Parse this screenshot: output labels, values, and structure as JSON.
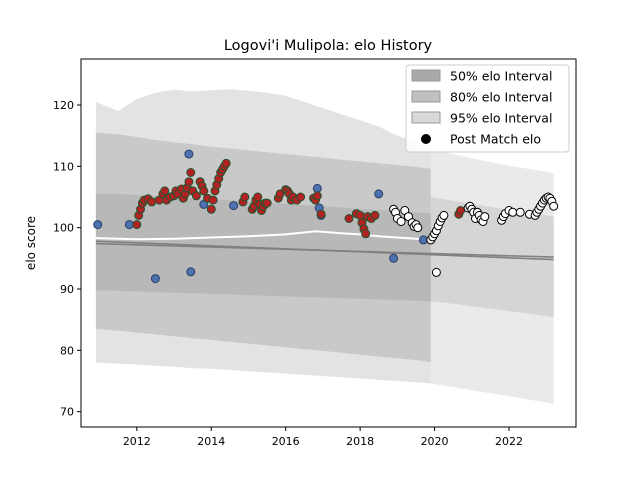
{
  "chart_data": {
    "type": "scatter",
    "title": "Logovi'i Mulipola: elo History",
    "xlabel": "",
    "ylabel": "elo score",
    "xlim": [
      2010.5,
      2023.8
    ],
    "ylim": [
      67.5,
      127.5
    ],
    "x_ticks": [
      2012,
      2014,
      2016,
      2018,
      2020,
      2022
    ],
    "y_ticks": [
      70,
      80,
      90,
      100,
      110,
      120
    ],
    "grid": false,
    "legend_position": "top-right",
    "legend": [
      {
        "label": "50% elo Interval",
        "kind": "band",
        "color": "#a9a9a9"
      },
      {
        "label": "80% elo Interval",
        "kind": "band",
        "color": "#c0c0c0"
      },
      {
        "label": "95% elo Interval",
        "kind": "band",
        "color": "#d9d9d9"
      },
      {
        "label": "Post Match elo",
        "kind": "marker",
        "color": "#000000"
      }
    ],
    "colors": {
      "band_50": "#a9a9a9",
      "band_80": "#bdbdbd",
      "band_95": "#d9d9d9",
      "blue_point": "#4c72b0",
      "red_point": "#b22222",
      "red_edge": "#1e5631",
      "open_point": "#ffffff",
      "mean_line": "#ffffff",
      "trend_line": "#808080"
    },
    "intervals": {
      "x": [
        2010.9,
        2011.5,
        2012.0,
        2012.5,
        2013.0,
        2013.5,
        2014.0,
        2014.5,
        2015.0,
        2015.5,
        2016.0,
        2016.5,
        2017.0,
        2017.5,
        2018.0,
        2018.5,
        2019.0,
        2019.5,
        2019.9
      ],
      "p50_upper": [
        115.5,
        115.2,
        114.8,
        114.3,
        113.9,
        113.6,
        113.2,
        112.9,
        112.6,
        112.3,
        112.0,
        111.7,
        111.4,
        111.1,
        110.8,
        110.5,
        110.2,
        109.9,
        109.6
      ],
      "p50_lower": [
        83.5,
        83.2,
        82.9,
        82.6,
        82.3,
        82.0,
        81.7,
        81.4,
        81.1,
        80.8,
        80.5,
        80.2,
        79.9,
        79.6,
        79.3,
        79.0,
        78.7,
        78.4,
        78.1
      ],
      "p80_upper": [
        105.5,
        105.5,
        105.3,
        105.2,
        105.0,
        104.8,
        104.6,
        104.5,
        104.3,
        104.1,
        103.9,
        103.7,
        103.5,
        103.3,
        103.1,
        102.9,
        102.7,
        102.5,
        102.3
      ],
      "p80_lower": [
        89.8,
        89.7,
        89.6,
        89.5,
        89.4,
        89.3,
        89.2,
        89.1,
        89.0,
        88.9,
        88.8,
        88.7,
        88.6,
        88.5,
        88.4,
        88.3,
        88.2,
        88.1,
        88.0
      ],
      "p95_upper": [
        120.5,
        119.0,
        121.0,
        122.0,
        122.5,
        122.2,
        122.4,
        122.6,
        122.3,
        122.0,
        121.5,
        120.5,
        119.5,
        118.5,
        117.5,
        116.5,
        115.0,
        114.0,
        113.0
      ],
      "p95_lower": [
        78.0,
        77.8,
        77.7,
        77.5,
        77.3,
        77.1,
        77.0,
        76.8,
        76.6,
        76.4,
        76.2,
        76.0,
        75.8,
        75.6,
        75.4,
        75.2,
        75.0,
        74.8,
        74.6
      ],
      "right_x": [
        2019.9,
        2020.5,
        2021.0,
        2021.5,
        2022.0,
        2022.5,
        2023.0,
        2023.2
      ],
      "right_95_upper": [
        113.0,
        112.0,
        111.3,
        110.7,
        110.1,
        109.6,
        109.1,
        108.9
      ],
      "right_95_lower": [
        74.6,
        74.0,
        73.5,
        73.0,
        72.5,
        72.0,
        71.5,
        71.2
      ],
      "right_80_upper": [
        105.0,
        104.4,
        103.9,
        103.4,
        102.9,
        102.4,
        102.0,
        101.8
      ],
      "right_80_lower": [
        88.0,
        87.6,
        87.2,
        86.8,
        86.4,
        86.0,
        85.6,
        85.4
      ]
    },
    "mean_line": {
      "x": [
        2010.9,
        2012.0,
        2013.0,
        2014.0,
        2015.0,
        2016.0,
        2016.8,
        2017.5,
        2018.0,
        2018.5,
        2019.0,
        2019.5,
        2020.0
      ],
      "y": [
        98.3,
        98.1,
        98.2,
        98.4,
        98.6,
        98.9,
        99.4,
        99.1,
        98.9,
        98.6,
        98.4,
        98.2,
        98.0
      ]
    },
    "trend_lines": [
      {
        "x": [
          2010.9,
          2023.2
        ],
        "y": [
          97.8,
          94.8
        ]
      },
      {
        "x": [
          2010.9,
          2023.2
        ],
        "y": [
          97.4,
          95.2
        ]
      }
    ],
    "points_blue": {
      "x": [
        2010.95,
        2011.8,
        2012.5,
        2013.4,
        2013.45,
        2013.5,
        2013.8,
        2014.6,
        2016.85,
        2016.9,
        2016.95,
        2018.5,
        2018.9,
        2019.7
      ],
      "y": [
        100.5,
        100.5,
        91.7,
        112.0,
        92.8,
        106.0,
        103.8,
        103.6,
        106.4,
        103.2,
        102.0,
        105.5,
        95.0,
        98.0
      ]
    },
    "points_red": {
      "x": [
        2012.0,
        2012.05,
        2012.1,
        2012.15,
        2012.2,
        2012.3,
        2012.4,
        2012.6,
        2012.7,
        2012.75,
        2012.8,
        2012.9,
        2013.0,
        2013.05,
        2013.1,
        2013.2,
        2013.25,
        2013.3,
        2013.35,
        2013.4,
        2013.45,
        2013.5,
        2013.6,
        2013.7,
        2013.75,
        2013.8,
        2013.9,
        2014.0,
        2014.05,
        2014.1,
        2014.15,
        2014.2,
        2014.25,
        2014.3,
        2014.35,
        2014.4,
        2014.85,
        2014.9,
        2015.1,
        2015.15,
        2015.2,
        2015.25,
        2015.3,
        2015.35,
        2015.4,
        2015.45,
        2015.5,
        2015.8,
        2015.85,
        2016.0,
        2016.05,
        2016.1,
        2016.15,
        2016.2,
        2016.3,
        2016.4,
        2016.75,
        2016.8,
        2016.85,
        2016.95,
        2017.7,
        2017.9,
        2018.0,
        2018.05,
        2018.1,
        2018.15,
        2018.2,
        2018.3,
        2018.4,
        2020.65,
        2020.7
      ],
      "y": [
        100.5,
        102.0,
        103.0,
        104.0,
        104.5,
        104.7,
        104.2,
        104.5,
        105.5,
        106.0,
        104.5,
        105.0,
        105.2,
        106.0,
        105.5,
        106.3,
        104.8,
        105.5,
        106.5,
        107.5,
        109.0,
        106.0,
        105.2,
        107.5,
        106.8,
        106.0,
        104.8,
        103.0,
        104.5,
        106.0,
        107.0,
        108.0,
        109.0,
        109.5,
        110.0,
        110.5,
        104.2,
        105.0,
        103.0,
        103.5,
        104.5,
        105.0,
        103.8,
        102.8,
        103.5,
        104.0,
        104.0,
        104.8,
        105.5,
        106.2,
        106.0,
        105.5,
        104.5,
        105.0,
        104.5,
        105.0,
        104.8,
        104.5,
        105.2,
        102.2,
        101.5,
        102.3,
        102.0,
        100.8,
        99.8,
        99.0,
        101.8,
        101.5,
        102.0,
        102.2,
        102.8
      ]
    },
    "points_open": {
      "x": [
        2018.9,
        2018.95,
        2019.0,
        2019.1,
        2019.2,
        2019.3,
        2019.4,
        2019.45,
        2019.5,
        2019.55,
        2019.9,
        2019.95,
        2020.0,
        2020.05,
        2020.1,
        2020.15,
        2020.2,
        2020.25,
        2020.05,
        2020.9,
        2020.95,
        2021.0,
        2021.05,
        2021.1,
        2021.15,
        2021.2,
        2021.25,
        2021.3,
        2021.35,
        2021.8,
        2021.85,
        2021.9,
        2022.0,
        2022.1,
        2022.3,
        2022.55,
        2022.7,
        2022.75,
        2022.8,
        2022.85,
        2022.9,
        2022.95,
        2023.0,
        2023.05,
        2023.1,
        2023.15,
        2023.2
      ],
      "y": [
        103.0,
        102.5,
        101.5,
        101.0,
        102.8,
        101.8,
        100.8,
        100.2,
        100.5,
        100.0,
        98.0,
        98.5,
        99.0,
        99.5,
        100.3,
        101.0,
        101.6,
        102.0,
        92.7,
        103.2,
        103.5,
        103.0,
        102.5,
        101.5,
        102.5,
        102.0,
        101.3,
        101.0,
        101.8,
        101.2,
        101.8,
        102.3,
        102.8,
        102.5,
        102.5,
        102.2,
        102.0,
        102.5,
        103.0,
        103.5,
        104.0,
        104.5,
        104.8,
        105.0,
        104.8,
        104.3,
        103.5
      ]
    }
  }
}
